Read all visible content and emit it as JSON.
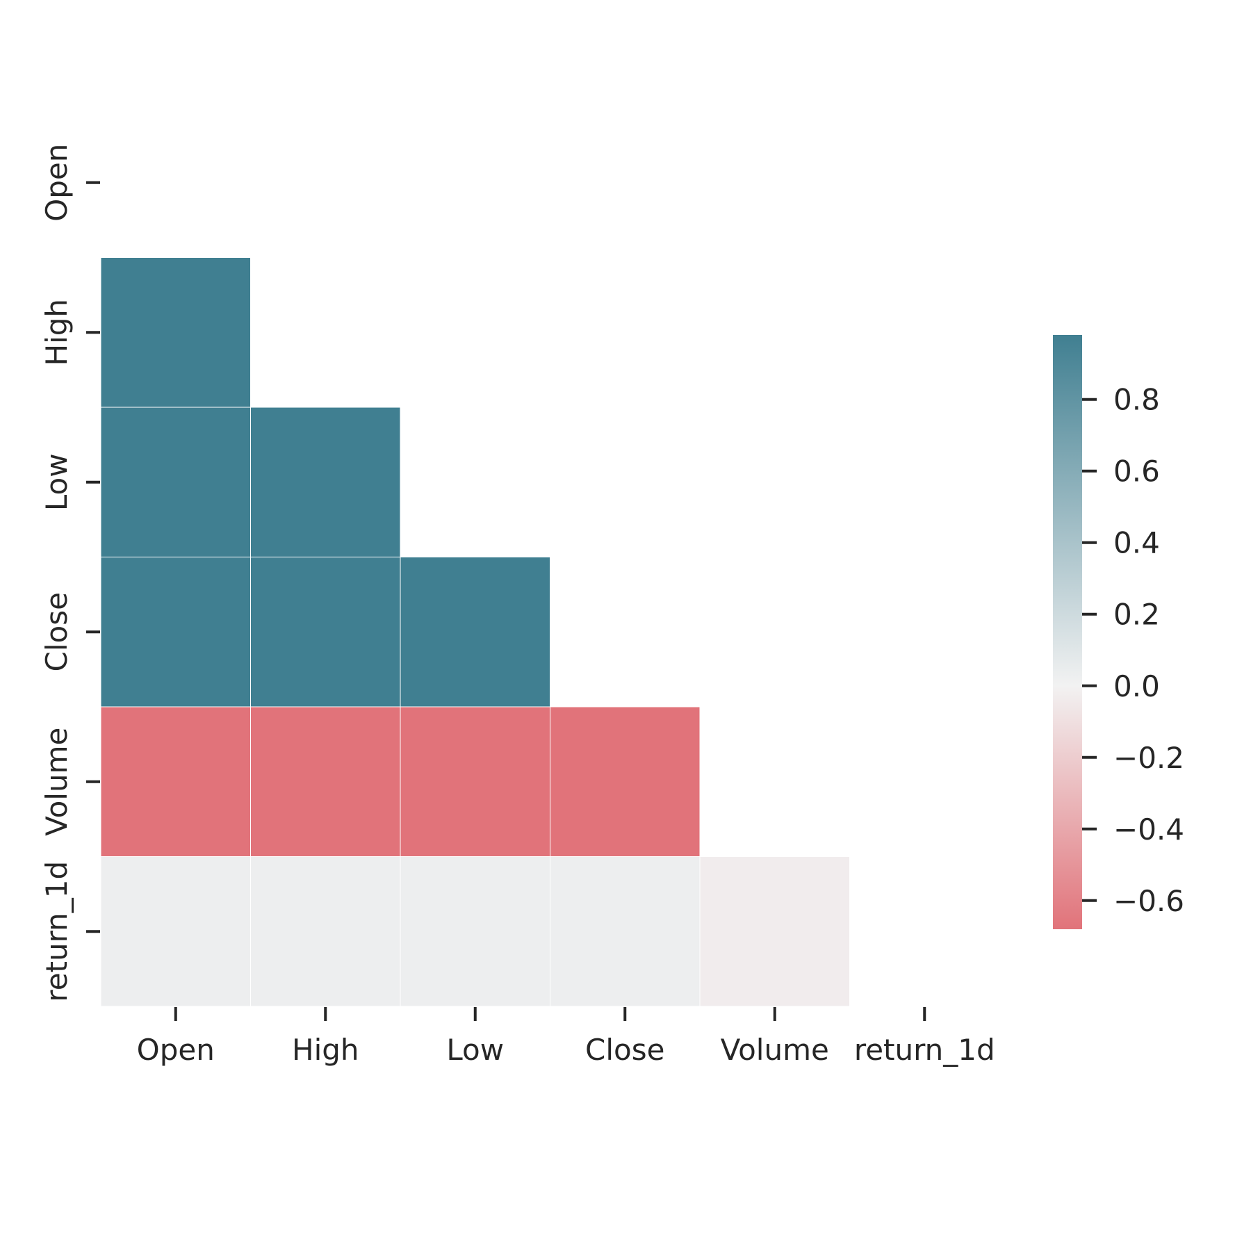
{
  "chart_data": {
    "type": "heatmap",
    "title": "",
    "mask": "upper-triangle-including-diagonal",
    "row_labels": [
      "Open",
      "High",
      "Low",
      "Close",
      "Volume",
      "return_1d"
    ],
    "col_labels": [
      "Open",
      "High",
      "Low",
      "Close",
      "Volume",
      "return_1d"
    ],
    "cells": [
      {
        "row": "High",
        "col": "Open",
        "value": 1.0
      },
      {
        "row": "Low",
        "col": "Open",
        "value": 1.0
      },
      {
        "row": "Low",
        "col": "High",
        "value": 1.0
      },
      {
        "row": "Close",
        "col": "Open",
        "value": 1.0
      },
      {
        "row": "Close",
        "col": "High",
        "value": 1.0
      },
      {
        "row": "Close",
        "col": "Low",
        "value": 1.0
      },
      {
        "row": "Volume",
        "col": "Open",
        "value": -0.68
      },
      {
        "row": "Volume",
        "col": "High",
        "value": -0.68
      },
      {
        "row": "Volume",
        "col": "Low",
        "value": -0.68
      },
      {
        "row": "Volume",
        "col": "Close",
        "value": -0.68
      },
      {
        "row": "return_1d",
        "col": "Open",
        "value": 0.03
      },
      {
        "row": "return_1d",
        "col": "High",
        "value": 0.03
      },
      {
        "row": "return_1d",
        "col": "Low",
        "value": 0.03
      },
      {
        "row": "return_1d",
        "col": "Close",
        "value": 0.03
      },
      {
        "row": "return_1d",
        "col": "Volume",
        "value": -0.03
      }
    ],
    "colorbar": {
      "vmin": -0.68,
      "vmax": 0.98,
      "ticks": [
        0.8,
        0.6,
        0.4,
        0.2,
        0.0,
        -0.2,
        -0.4,
        -0.6
      ],
      "tick_labels": [
        "0.8",
        "0.6",
        "0.4",
        "0.2",
        "0.0",
        "−0.2",
        "−0.4",
        "−0.6"
      ],
      "negative_color": "#e1737a",
      "center_color": "#f2f2f2",
      "positive_color": "#407f91"
    }
  }
}
